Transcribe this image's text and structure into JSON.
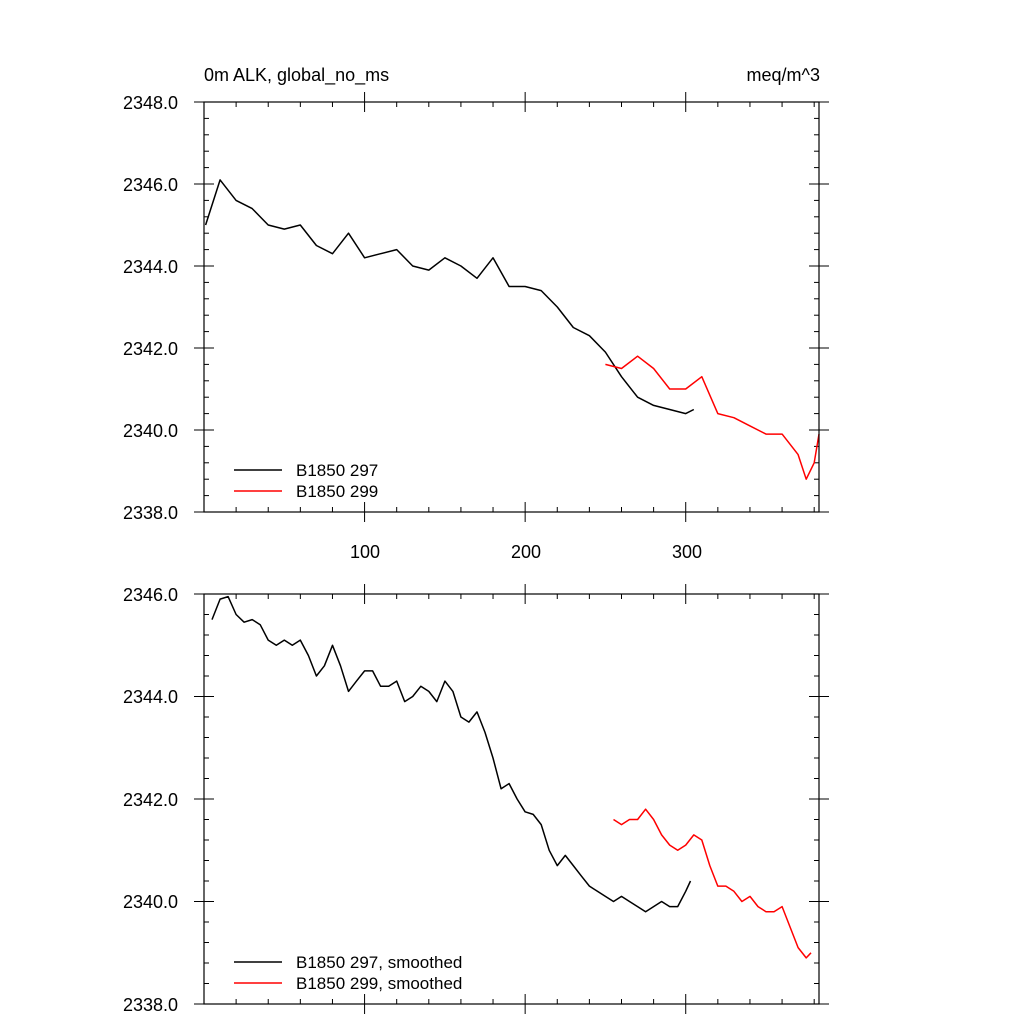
{
  "chart_data": [
    {
      "type": "line",
      "title_left": "0m ALK, global_no_ms",
      "title_right": "meq/m^3",
      "xlim": [
        0,
        383
      ],
      "ylim": [
        2338.0,
        2348.0
      ],
      "x_ticks": [
        "100",
        "200",
        "300"
      ],
      "y_ticks": [
        "2338.0",
        "2340.0",
        "2342.0",
        "2344.0",
        "2346.0",
        "2348.0"
      ],
      "legend": [
        "B1850 297",
        "B1850 299"
      ],
      "series": [
        {
          "name": "B1850 297",
          "color": "#000000",
          "x": [
            1,
            10,
            20,
            30,
            40,
            50,
            60,
            70,
            80,
            90,
            100,
            110,
            120,
            130,
            140,
            150,
            160,
            170,
            180,
            190,
            200,
            210,
            220,
            230,
            240,
            250,
            260,
            270,
            280,
            290,
            300,
            305
          ],
          "values": [
            2345.0,
            2346.1,
            2345.6,
            2345.4,
            2345.0,
            2344.9,
            2345.0,
            2344.5,
            2344.3,
            2344.8,
            2344.2,
            2344.3,
            2344.4,
            2344.0,
            2343.9,
            2344.2,
            2344.0,
            2343.7,
            2344.2,
            2343.5,
            2343.5,
            2343.4,
            2343.0,
            2342.5,
            2342.3,
            2341.9,
            2341.3,
            2340.8,
            2340.6,
            2340.5,
            2340.4,
            2340.5
          ]
        },
        {
          "name": "B1850 299",
          "color": "#ff0000",
          "x": [
            250,
            260,
            270,
            280,
            290,
            300,
            310,
            320,
            330,
            340,
            350,
            360,
            370,
            375,
            380,
            383
          ],
          "values": [
            2341.6,
            2341.5,
            2341.8,
            2341.5,
            2341.0,
            2341.0,
            2341.3,
            2340.4,
            2340.3,
            2340.1,
            2339.9,
            2339.9,
            2339.4,
            2338.8,
            2339.2,
            2339.9
          ]
        }
      ]
    },
    {
      "type": "line",
      "xlim": [
        0,
        383
      ],
      "ylim": [
        2338.0,
        2346.0
      ],
      "y_ticks": [
        "2338.0",
        "2340.0",
        "2342.0",
        "2344.0",
        "2346.0"
      ],
      "legend": [
        "B1850 297, smoothed",
        "B1850 299, smoothed"
      ],
      "series": [
        {
          "name": "B1850 297, smoothed",
          "color": "#000000",
          "x": [
            5,
            10,
            15,
            20,
            25,
            30,
            35,
            40,
            45,
            50,
            55,
            60,
            65,
            70,
            75,
            80,
            85,
            90,
            95,
            100,
            105,
            110,
            115,
            120,
            125,
            130,
            135,
            140,
            145,
            150,
            155,
            160,
            165,
            170,
            175,
            180,
            185,
            190,
            195,
            200,
            205,
            210,
            215,
            220,
            225,
            230,
            235,
            240,
            245,
            250,
            255,
            260,
            265,
            270,
            275,
            280,
            285,
            290,
            295,
            300,
            303
          ],
          "values": [
            2345.5,
            2345.9,
            2345.95,
            2345.6,
            2345.45,
            2345.5,
            2345.4,
            2345.1,
            2345.0,
            2345.1,
            2345.0,
            2345.1,
            2344.8,
            2344.4,
            2344.6,
            2345.0,
            2344.6,
            2344.1,
            2344.3,
            2344.5,
            2344.5,
            2344.2,
            2344.2,
            2344.3,
            2343.9,
            2344.0,
            2344.2,
            2344.1,
            2343.9,
            2344.3,
            2344.1,
            2343.6,
            2343.5,
            2343.7,
            2343.3,
            2342.8,
            2342.2,
            2342.3,
            2342.0,
            2341.75,
            2341.7,
            2341.5,
            2341.0,
            2340.7,
            2340.9,
            2340.7,
            2340.5,
            2340.3,
            2340.2,
            2340.1,
            2340.0,
            2340.1,
            2340.0,
            2339.9,
            2339.8,
            2339.9,
            2340.0,
            2339.9,
            2339.9,
            2340.2,
            2340.4
          ]
        },
        {
          "name": "B1850 299, smoothed",
          "color": "#ff0000",
          "x": [
            255,
            260,
            265,
            270,
            275,
            280,
            285,
            290,
            295,
            300,
            305,
            310,
            315,
            320,
            325,
            330,
            335,
            340,
            345,
            350,
            355,
            360,
            365,
            370,
            375,
            378
          ],
          "values": [
            2341.6,
            2341.5,
            2341.6,
            2341.6,
            2341.8,
            2341.6,
            2341.3,
            2341.1,
            2341.0,
            2341.1,
            2341.3,
            2341.2,
            2340.7,
            2340.3,
            2340.3,
            2340.2,
            2340.0,
            2340.1,
            2339.9,
            2339.8,
            2339.8,
            2339.9,
            2339.5,
            2339.1,
            2338.9,
            2339.0
          ]
        }
      ]
    }
  ]
}
